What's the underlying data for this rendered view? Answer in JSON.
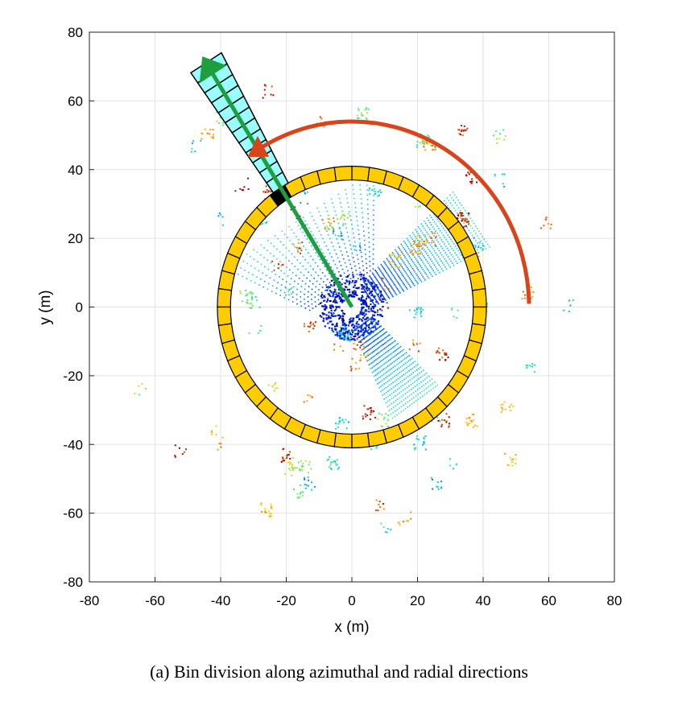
{
  "chart_data": {
    "type": "scatter",
    "title": "",
    "xlabel": "x (m)",
    "ylabel": "y (m)",
    "xlim": [
      -80,
      80
    ],
    "ylim": [
      -80,
      80
    ],
    "xticks": [
      "-80",
      "-60",
      "-40",
      "-20",
      "0",
      "20",
      "40",
      "60",
      "80"
    ],
    "yticks": [
      "80",
      "60",
      "40",
      "20",
      "0",
      "-20",
      "-40",
      "-60",
      "-80"
    ],
    "grid": true,
    "ring": {
      "center": [
        0,
        0
      ],
      "inner_radius": 37,
      "outer_radius": 41,
      "azimuthal_bins": 48,
      "color": "#FFCC00"
    },
    "highlighted_bin": {
      "azimuth_deg": 122,
      "color": "#000000"
    },
    "radial_sector": {
      "azimuth_deg": 122,
      "from_radius": 0,
      "to_radius": 84,
      "radial_bins": 12,
      "color": "#99FFFF"
    },
    "radial_arrow": {
      "azimuth_deg": 122,
      "color": "#1E9E3E"
    },
    "azimuth_arc": {
      "radius": 54,
      "from_deg": 1,
      "to_deg": 125,
      "color": "#D9441A"
    }
  },
  "caption": "(a) Bin division along azimuthal and radial directions"
}
